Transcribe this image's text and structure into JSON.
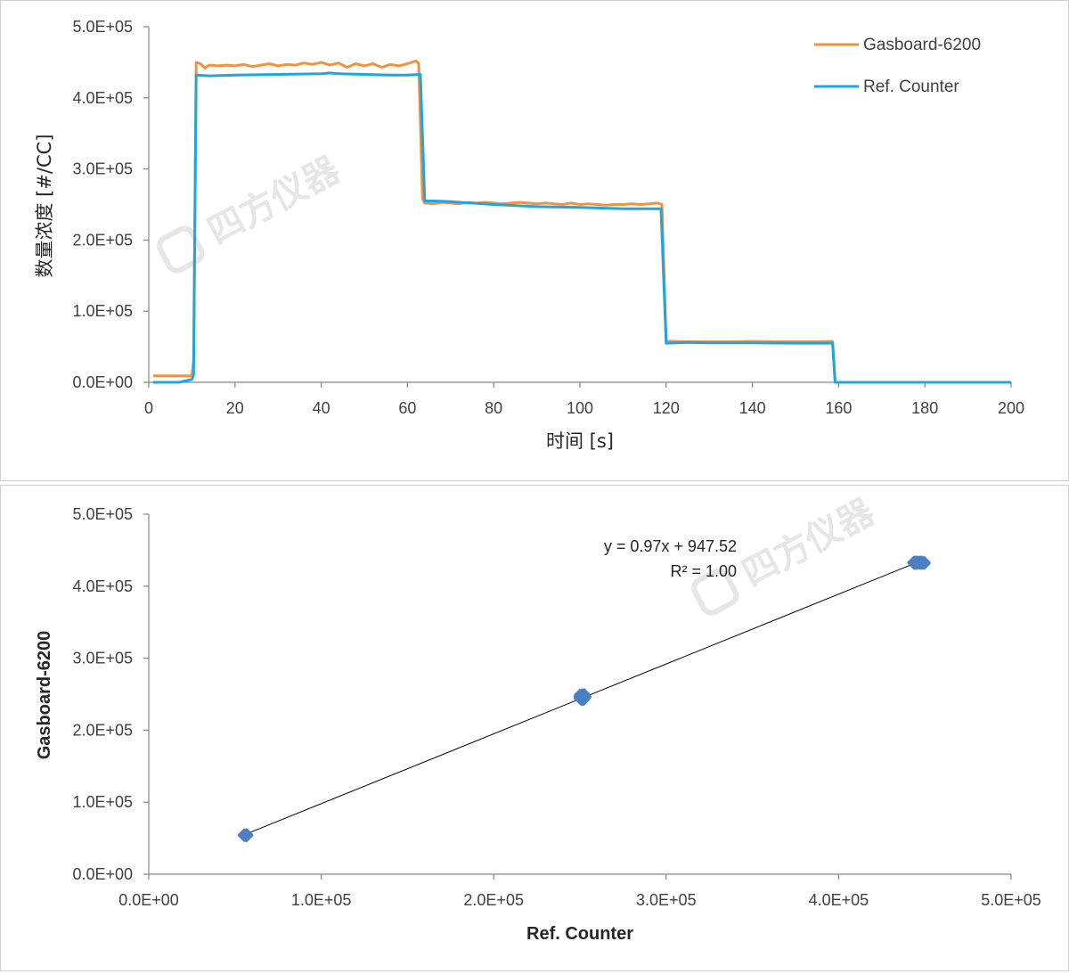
{
  "colors": {
    "gasboard": "#f0923e",
    "ref": "#1ea7df",
    "scatter": "#4a7fc1",
    "trend": "#000000",
    "axis": "#868686",
    "watermark": "#e6e6e6"
  },
  "watermark": {
    "text": "四方仪器"
  },
  "chart_data": [
    {
      "type": "line",
      "title": "",
      "xlabel": "时间 [s]",
      "ylabel": "数量浓度 [#/CC]",
      "xlim": [
        0,
        200
      ],
      "ylim": [
        0,
        500000
      ],
      "x_ticks": [
        0,
        20,
        40,
        60,
        80,
        100,
        120,
        140,
        160,
        180,
        200
      ],
      "x_tick_labels": [
        "0",
        "20",
        "40",
        "60",
        "80",
        "100",
        "120",
        "140",
        "160",
        "180",
        "200"
      ],
      "y_ticks": [
        0,
        100000,
        200000,
        300000,
        400000,
        500000
      ],
      "y_tick_labels": [
        "0.0E+00",
        "1.0E+05",
        "2.0E+05",
        "3.0E+05",
        "4.0E+05",
        "5.0E+05"
      ],
      "grid": false,
      "legend": "top-right",
      "series": [
        {
          "name": "Gasboard-6200",
          "color_key": "gasboard",
          "points": [
            [
              1,
              9000
            ],
            [
              10,
              9000
            ],
            [
              10.4,
              30000
            ],
            [
              11,
              450000
            ],
            [
              12,
              448000
            ],
            [
              13,
              442000
            ],
            [
              14,
              446000
            ],
            [
              16,
              445000
            ],
            [
              18,
              446000
            ],
            [
              20,
              445000
            ],
            [
              22,
              447000
            ],
            [
              24,
              444000
            ],
            [
              26,
              446000
            ],
            [
              28,
              448000
            ],
            [
              30,
              445000
            ],
            [
              32,
              447000
            ],
            [
              34,
              446000
            ],
            [
              36,
              449000
            ],
            [
              38,
              447000
            ],
            [
              40,
              450000
            ],
            [
              42,
              446000
            ],
            [
              44,
              449000
            ],
            [
              46,
              443000
            ],
            [
              48,
              448000
            ],
            [
              50,
              445000
            ],
            [
              52,
              448000
            ],
            [
              54,
              443000
            ],
            [
              56,
              447000
            ],
            [
              58,
              445000
            ],
            [
              60,
              448000
            ],
            [
              62,
              452000
            ],
            [
              62.6,
              448000
            ],
            [
              63.5,
              258000
            ],
            [
              64,
              252000
            ],
            [
              66,
              251000
            ],
            [
              68,
              253000
            ],
            [
              70,
              252000
            ],
            [
              72,
              251000
            ],
            [
              74,
              253000
            ],
            [
              76,
              252000
            ],
            [
              78,
              253000
            ],
            [
              80,
              252000
            ],
            [
              82,
              251000
            ],
            [
              84,
              252000
            ],
            [
              86,
              253000
            ],
            [
              88,
              252000
            ],
            [
              90,
              251000
            ],
            [
              92,
              252000
            ],
            [
              94,
              251000
            ],
            [
              96,
              250000
            ],
            [
              98,
              252000
            ],
            [
              100,
              250000
            ],
            [
              102,
              251000
            ],
            [
              104,
              250000
            ],
            [
              106,
              249000
            ],
            [
              108,
              250000
            ],
            [
              110,
              250000
            ],
            [
              112,
              251000
            ],
            [
              114,
              250000
            ],
            [
              116,
              251000
            ],
            [
              118,
              252000
            ],
            [
              119,
              250000
            ],
            [
              120,
              58000
            ],
            [
              122,
              57500
            ],
            [
              126,
              57000
            ],
            [
              130,
              57000
            ],
            [
              135,
              57000
            ],
            [
              140,
              57500
            ],
            [
              145,
              57000
            ],
            [
              150,
              57000
            ],
            [
              155,
              57000
            ],
            [
              158,
              57500
            ],
            [
              158.6,
              57000
            ],
            [
              159.2,
              0
            ],
            [
              200,
              0
            ]
          ]
        },
        {
          "name": "Ref. Counter",
          "color_key": "ref",
          "points": [
            [
              1,
              0
            ],
            [
              7,
              0
            ],
            [
              10,
              4000
            ],
            [
              10.4,
              10000
            ],
            [
              11,
              432000
            ],
            [
              14,
              431000
            ],
            [
              20,
              432000
            ],
            [
              30,
              433000
            ],
            [
              40,
              434000
            ],
            [
              42,
              435000
            ],
            [
              44,
              434000
            ],
            [
              50,
              433000
            ],
            [
              56,
              432000
            ],
            [
              60,
              432000
            ],
            [
              63,
              433000
            ],
            [
              64,
              255000
            ],
            [
              66,
              255000
            ],
            [
              70,
              254000
            ],
            [
              80,
              250000
            ],
            [
              90,
              247000
            ],
            [
              100,
              246000
            ],
            [
              110,
              244000
            ],
            [
              118,
              244000
            ],
            [
              118.8,
              244000
            ],
            [
              120,
              55000
            ],
            [
              125,
              56000
            ],
            [
              130,
              55500
            ],
            [
              140,
              55500
            ],
            [
              150,
              55000
            ],
            [
              158,
              55000
            ],
            [
              158.6,
              55000
            ],
            [
              159.2,
              0
            ],
            [
              200,
              0
            ]
          ]
        }
      ]
    },
    {
      "type": "scatter",
      "title": "",
      "xlabel": "Ref. Counter",
      "ylabel": "Gasboard-6200",
      "xlim": [
        0,
        500000
      ],
      "ylim": [
        0,
        500000
      ],
      "x_ticks": [
        0,
        100000,
        200000,
        300000,
        400000,
        500000
      ],
      "x_tick_labels": [
        "0.0E+00",
        "1.0E+05",
        "2.0E+05",
        "3.0E+05",
        "4.0E+05",
        "5.0E+05"
      ],
      "y_ticks": [
        0,
        100000,
        200000,
        300000,
        400000,
        500000
      ],
      "y_tick_labels": [
        "0.0E+00",
        "1.0E+05",
        "2.0E+05",
        "3.0E+05",
        "4.0E+05",
        "5.0E+05"
      ],
      "grid": false,
      "clusters": [
        {
          "x": 56000,
          "y": 54000,
          "n": 20,
          "sx": 1200,
          "sy": 1500
        },
        {
          "x": 251500,
          "y": 246000,
          "n": 45,
          "sx": 1800,
          "sy": 4000
        },
        {
          "x": 446500,
          "y": 432500,
          "n": 60,
          "sx": 3500,
          "sy": 1500
        }
      ],
      "trendline": {
        "slope": 0.97,
        "intercept": 947.52,
        "x_from": 56000,
        "x_to": 447000
      },
      "equation": "y = 0.97x + 947.52",
      "r2_label": "R² = 1.00"
    }
  ]
}
